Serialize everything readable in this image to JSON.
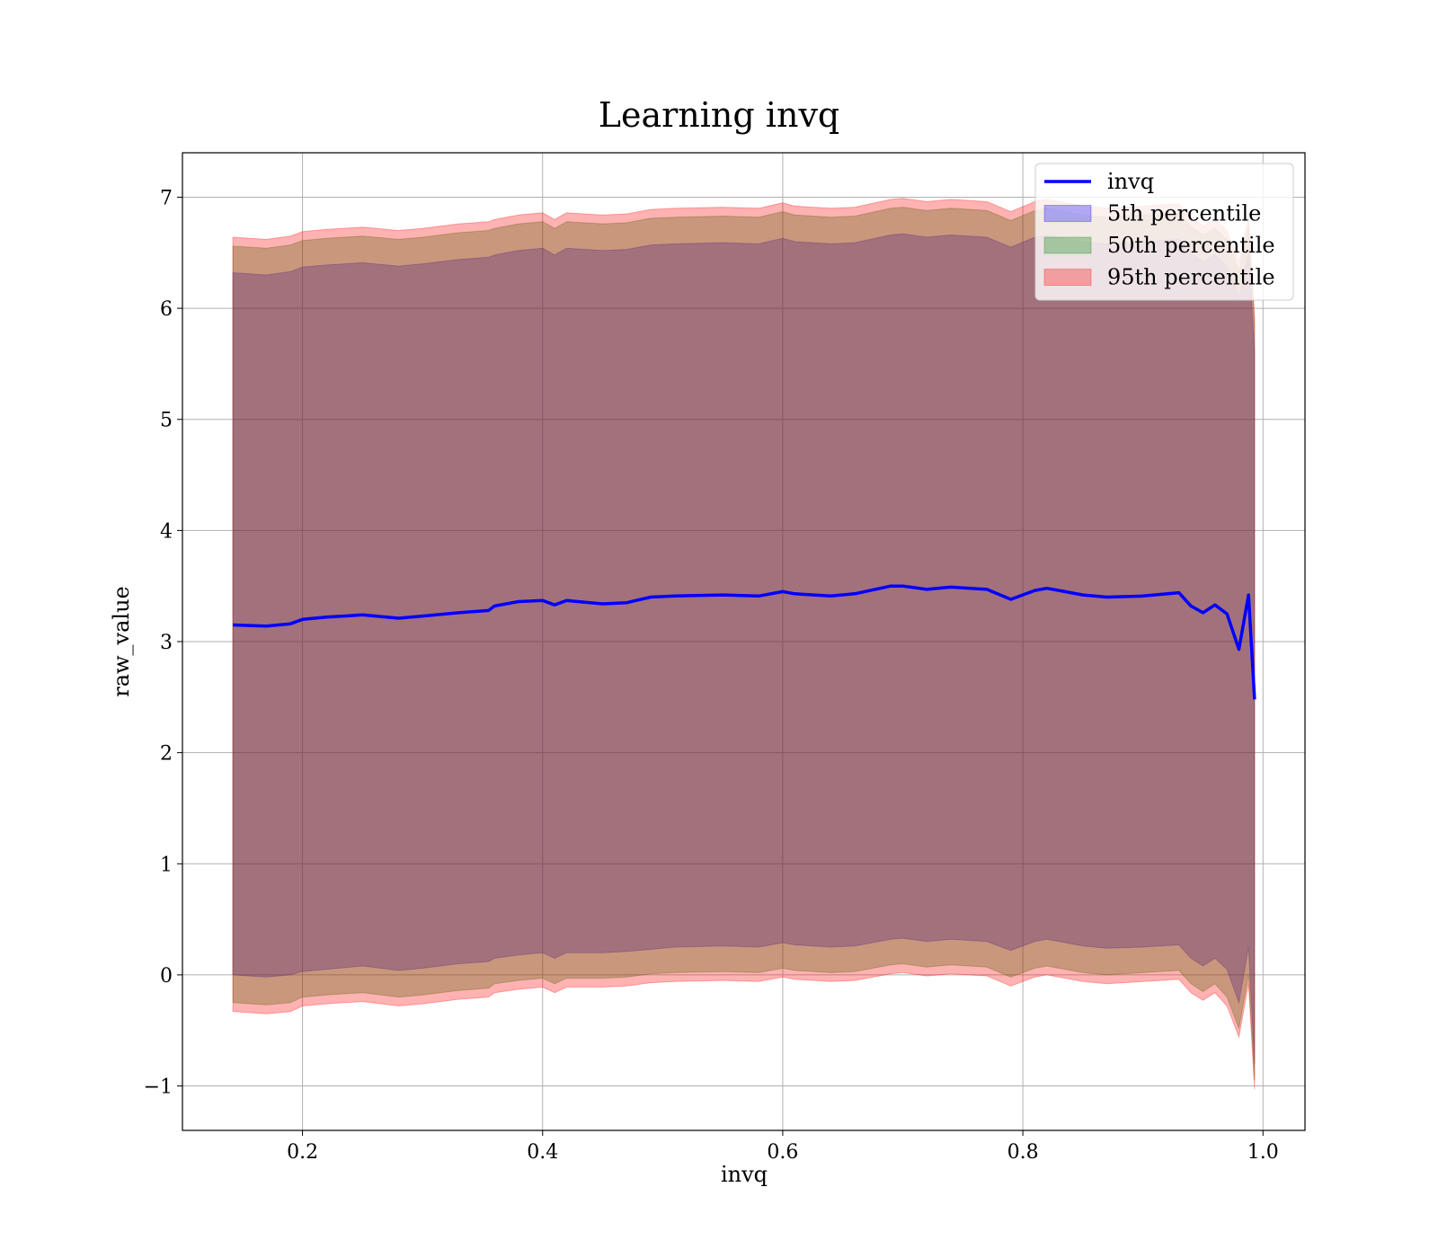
{
  "chart_data": {
    "type": "area",
    "title": "Learning invq",
    "xlabel": "invq",
    "ylabel": "raw_value",
    "xlim": [
      0.1,
      1.035
    ],
    "ylim": [
      -1.4,
      7.4
    ],
    "xticks": [
      0.2,
      0.4,
      0.6,
      0.8,
      1.0
    ],
    "xtick_labels": [
      "0.2",
      "0.4",
      "0.6",
      "0.8",
      "1.0"
    ],
    "yticks": [
      -1,
      0,
      1,
      2,
      3,
      4,
      5,
      6,
      7
    ],
    "ytick_labels": [
      "−1",
      "0",
      "1",
      "2",
      "3",
      "4",
      "5",
      "6",
      "7"
    ],
    "grid": true,
    "legend_position": "top-right",
    "x": [
      0.142,
      0.17,
      0.19,
      0.2,
      0.22,
      0.25,
      0.28,
      0.3,
      0.33,
      0.355,
      0.36,
      0.38,
      0.4,
      0.41,
      0.42,
      0.45,
      0.47,
      0.49,
      0.51,
      0.55,
      0.58,
      0.6,
      0.61,
      0.64,
      0.66,
      0.69,
      0.7,
      0.72,
      0.74,
      0.77,
      0.79,
      0.81,
      0.82,
      0.83,
      0.85,
      0.87,
      0.9,
      0.93,
      0.94,
      0.95,
      0.96,
      0.97,
      0.98,
      0.988,
      0.993
    ],
    "series": [
      {
        "name": "invq",
        "kind": "line",
        "color": "#0000ff",
        "values": [
          3.15,
          3.14,
          3.16,
          3.2,
          3.22,
          3.24,
          3.21,
          3.23,
          3.26,
          3.28,
          3.32,
          3.36,
          3.37,
          3.33,
          3.37,
          3.34,
          3.35,
          3.4,
          3.41,
          3.42,
          3.41,
          3.45,
          3.43,
          3.41,
          3.43,
          3.5,
          3.5,
          3.47,
          3.49,
          3.47,
          3.38,
          3.46,
          3.48,
          3.46,
          3.42,
          3.4,
          3.41,
          3.44,
          3.32,
          3.26,
          3.33,
          3.25,
          2.93,
          3.42,
          2.48
        ]
      },
      {
        "name": "5th percentile",
        "kind": "band",
        "color": "#0000ff",
        "lower": [
          0.0,
          -0.02,
          0.0,
          0.03,
          0.05,
          0.08,
          0.04,
          0.06,
          0.1,
          0.12,
          0.15,
          0.18,
          0.2,
          0.15,
          0.2,
          0.2,
          0.21,
          0.23,
          0.25,
          0.26,
          0.25,
          0.29,
          0.27,
          0.25,
          0.26,
          0.32,
          0.33,
          0.3,
          0.32,
          0.3,
          0.22,
          0.3,
          0.32,
          0.3,
          0.26,
          0.24,
          0.25,
          0.27,
          0.15,
          0.08,
          0.15,
          0.05,
          -0.25,
          0.25,
          -0.8
        ],
        "upper": [
          6.32,
          6.3,
          6.33,
          6.37,
          6.39,
          6.41,
          6.38,
          6.4,
          6.44,
          6.46,
          6.48,
          6.52,
          6.54,
          6.48,
          6.54,
          6.52,
          6.53,
          6.57,
          6.58,
          6.59,
          6.58,
          6.63,
          6.6,
          6.58,
          6.59,
          6.66,
          6.67,
          6.64,
          6.66,
          6.64,
          6.55,
          6.64,
          6.66,
          6.64,
          6.6,
          6.58,
          6.6,
          6.62,
          6.5,
          6.42,
          6.48,
          6.38,
          6.1,
          6.5,
          5.6
        ]
      },
      {
        "name": "50th percentile",
        "kind": "band",
        "color": "#008000",
        "lower": [
          -0.25,
          -0.27,
          -0.25,
          -0.2,
          -0.18,
          -0.16,
          -0.2,
          -0.18,
          -0.14,
          -0.12,
          -0.08,
          -0.05,
          -0.03,
          -0.08,
          -0.03,
          -0.03,
          -0.02,
          0.01,
          0.02,
          0.03,
          0.02,
          0.06,
          0.04,
          0.02,
          0.03,
          0.09,
          0.1,
          0.07,
          0.09,
          0.07,
          -0.02,
          0.06,
          0.08,
          0.06,
          0.02,
          0.0,
          0.02,
          0.04,
          -0.08,
          -0.15,
          -0.08,
          -0.2,
          -0.48,
          0.0,
          -0.95
        ],
        "upper": [
          6.56,
          6.54,
          6.57,
          6.61,
          6.63,
          6.65,
          6.62,
          6.64,
          6.68,
          6.7,
          6.72,
          6.76,
          6.78,
          6.72,
          6.78,
          6.76,
          6.77,
          6.81,
          6.82,
          6.83,
          6.82,
          6.87,
          6.84,
          6.82,
          6.83,
          6.9,
          6.91,
          6.88,
          6.9,
          6.88,
          6.79,
          6.88,
          6.9,
          6.88,
          6.84,
          6.82,
          6.84,
          6.86,
          6.74,
          6.66,
          6.72,
          6.62,
          6.34,
          6.74,
          5.84
        ]
      },
      {
        "name": "95th percentile",
        "kind": "band",
        "color": "#ff0000",
        "lower": [
          -0.33,
          -0.35,
          -0.33,
          -0.28,
          -0.26,
          -0.24,
          -0.28,
          -0.26,
          -0.22,
          -0.2,
          -0.16,
          -0.13,
          -0.11,
          -0.16,
          -0.11,
          -0.11,
          -0.1,
          -0.07,
          -0.06,
          -0.05,
          -0.06,
          -0.02,
          -0.04,
          -0.06,
          -0.05,
          0.01,
          0.02,
          -0.01,
          0.01,
          -0.01,
          -0.1,
          -0.02,
          0.0,
          -0.02,
          -0.06,
          -0.08,
          -0.06,
          -0.04,
          -0.16,
          -0.23,
          -0.16,
          -0.28,
          -0.56,
          -0.08,
          -1.03
        ],
        "upper": [
          6.64,
          6.62,
          6.65,
          6.69,
          6.71,
          6.73,
          6.7,
          6.72,
          6.76,
          6.78,
          6.8,
          6.84,
          6.86,
          6.8,
          6.86,
          6.84,
          6.85,
          6.89,
          6.9,
          6.91,
          6.9,
          6.95,
          6.92,
          6.9,
          6.91,
          6.98,
          6.99,
          6.96,
          6.98,
          6.96,
          6.87,
          6.96,
          6.98,
          6.96,
          6.92,
          6.9,
          6.92,
          6.94,
          6.82,
          6.74,
          6.8,
          6.7,
          6.42,
          6.82,
          5.92
        ]
      }
    ]
  }
}
